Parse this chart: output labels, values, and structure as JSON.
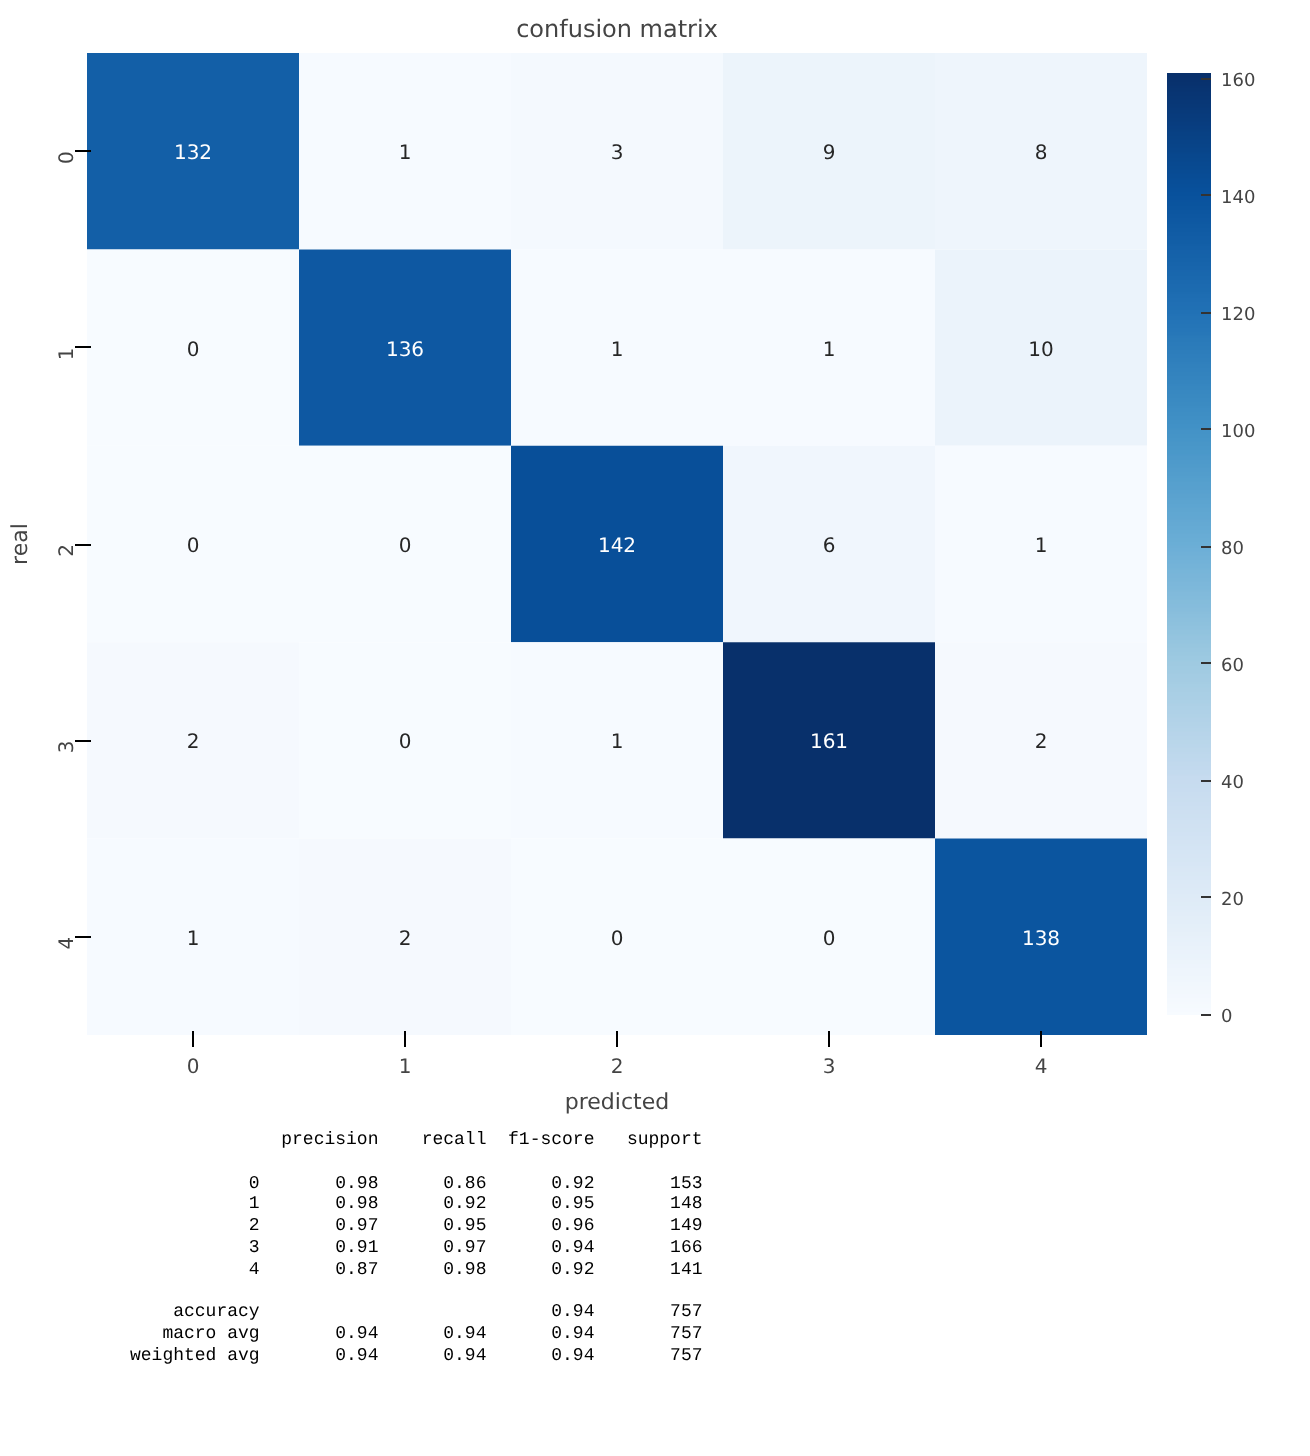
{
  "chart_data": {
    "type": "heatmap",
    "title": "confusion matrix",
    "xlabel": "predicted",
    "ylabel": "real",
    "categories": [
      "0",
      "1",
      "2",
      "3",
      "4"
    ],
    "y_categories": [
      "0",
      "1",
      "2",
      "3",
      "4"
    ],
    "cells": [
      [
        132,
        1,
        3,
        9,
        8
      ],
      [
        0,
        136,
        1,
        1,
        10
      ],
      [
        0,
        0,
        142,
        6,
        1
      ],
      [
        2,
        0,
        1,
        161,
        2
      ],
      [
        1,
        2,
        0,
        0,
        138
      ]
    ],
    "clim": [
      0,
      161
    ],
    "cticks": [
      0,
      20,
      40,
      60,
      80,
      100,
      120,
      140,
      160
    ],
    "data_labels": true,
    "annotations": [
      "              precision    recall  f1-score   support",
      "           0       0.98      0.86      0.92       153",
      "           1       0.98      0.92      0.95       148",
      "           2       0.97      0.95      0.96       149",
      "           3       0.91      0.97      0.94       166",
      "           4       0.87      0.98      0.92       141",
      "    accuracy                           0.94       757",
      "   macro avg       0.94      0.94      0.94       757",
      "weighted avg       0.94      0.94      0.94       757"
    ]
  }
}
